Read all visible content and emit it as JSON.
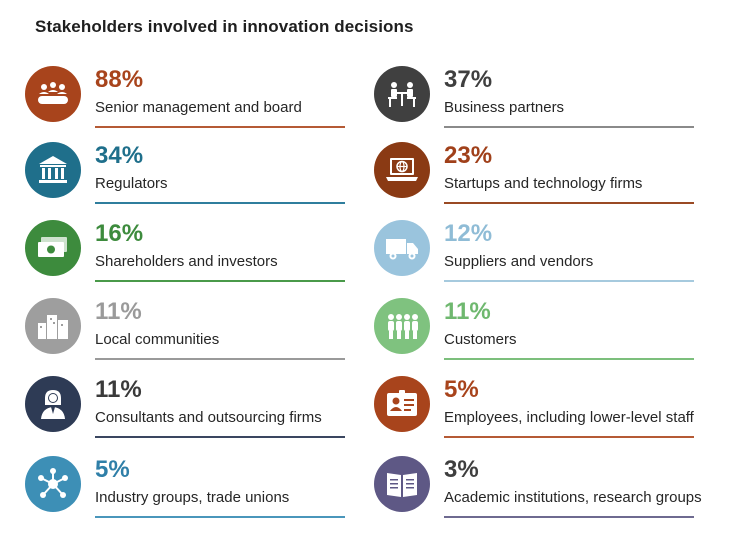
{
  "chart_data": {
    "type": "table",
    "title": "Stakeholders involved in innovation decisions",
    "unit": "%",
    "items": [
      {
        "label": "Senior management and board",
        "value": 88,
        "display": "88%",
        "icon": "meeting-table-icon",
        "color": "#a8441c"
      },
      {
        "label": "Regulators",
        "value": 34,
        "display": "34%",
        "icon": "government-building-icon",
        "color": "#1f6f8b"
      },
      {
        "label": "Shareholders and investors",
        "value": 16,
        "display": "16%",
        "icon": "money-bills-icon",
        "color": "#3d8b3d"
      },
      {
        "label": "Local communities",
        "value": 11,
        "display": "11%",
        "icon": "city-buildings-icon",
        "color": "#9e9e9e"
      },
      {
        "label": "Consultants and outsourcing firms",
        "value": 11,
        "display": "11%",
        "icon": "consultant-person-icon",
        "color": "#2e3b55"
      },
      {
        "label": "Industry groups, trade unions",
        "value": 5,
        "display": "5%",
        "icon": "network-hub-icon",
        "color": "#3d8fb6"
      },
      {
        "label": "Business partners",
        "value": 37,
        "display": "37%",
        "icon": "business-meeting-icon",
        "color": "#404040"
      },
      {
        "label": "Startups and technology firms",
        "value": 23,
        "display": "23%",
        "icon": "laptop-globe-icon",
        "color": "#8a3a14"
      },
      {
        "label": "Suppliers and vendors",
        "value": 12,
        "display": "12%",
        "icon": "delivery-truck-icon",
        "color": "#9ac4dd"
      },
      {
        "label": "Customers",
        "value": 11,
        "display": "11%",
        "icon": "people-group-icon",
        "color": "#7fc27f"
      },
      {
        "label": "Employees, including lower-level staff",
        "value": 5,
        "display": "5%",
        "icon": "id-badge-icon",
        "color": "#a8441c"
      },
      {
        "label": "Academic institutions, research groups",
        "value": 3,
        "display": "3%",
        "icon": "open-book-icon",
        "color": "#5e5885"
      }
    ]
  }
}
